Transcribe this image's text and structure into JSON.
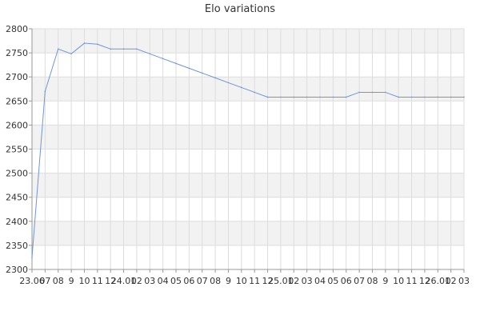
{
  "chart_data": {
    "type": "line",
    "title": "Elo variations",
    "xlabel": "",
    "ylabel": "",
    "ylim": [
      2300,
      2800
    ],
    "yticks": [
      2300,
      2350,
      2400,
      2450,
      2500,
      2550,
      2600,
      2650,
      2700,
      2750,
      2800
    ],
    "xtick_labels": [
      "23.06",
      "07",
      "08",
      "9",
      "10",
      "11",
      "12",
      "24.01",
      "02",
      "03",
      "04",
      "05",
      "06",
      "07",
      "08",
      "9",
      "10",
      "11",
      "12",
      "25.01",
      "02",
      "03",
      "04",
      "05",
      "06",
      "07",
      "08",
      "9",
      "10",
      "11",
      "12",
      "26.01",
      "02",
      "03"
    ],
    "grid": true,
    "legend": "none",
    "line_color": "#6f95dc",
    "series": [
      {
        "values": [
          2325,
          2670,
          2758,
          2748,
          2770,
          2768,
          2758,
          2758,
          2758,
          2748,
          2738,
          2728,
          2718,
          2708,
          2698,
          2688,
          2678,
          2668,
          2658,
          2658,
          2658,
          2658,
          2658,
          2658,
          2658,
          2668,
          2668,
          2668,
          2658,
          2658,
          2658,
          2658,
          2658,
          2658
        ]
      }
    ]
  }
}
